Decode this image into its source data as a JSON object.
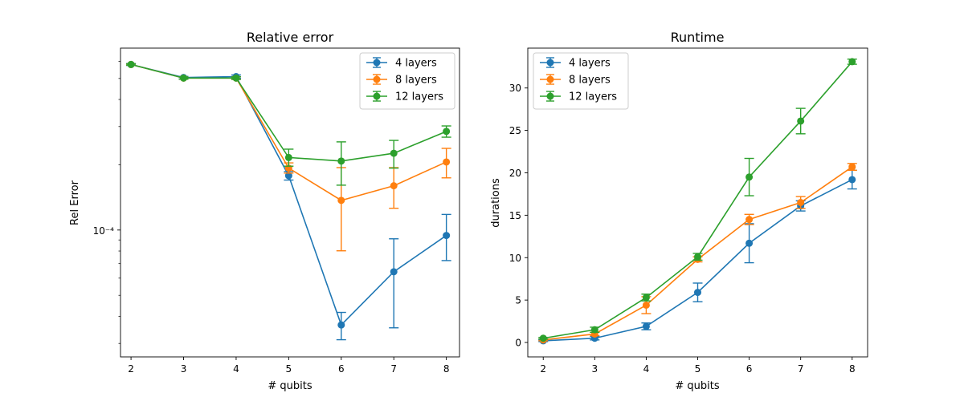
{
  "chart_data": [
    {
      "type": "line",
      "title": "Relative error",
      "xlabel": "# qubits",
      "ylabel": "Rel Error",
      "yscale": "log",
      "x": [
        2,
        3,
        4,
        5,
        6,
        7,
        8
      ],
      "xlim": [
        1.8,
        8.25
      ],
      "ylim": [
        2.6e-05,
        0.00069
      ],
      "y_tick_labels": [
        "10⁻⁴"
      ],
      "legend": "top-right",
      "series": [
        {
          "name": "4 layers",
          "color": "#1f77b4",
          "values": [
            0.00058,
            0.000505,
            0.00051,
            0.000178,
            3.65e-05,
            6.42e-05,
            9.44e-05
          ],
          "err_low": [
            0.000574,
            0.000498,
            0.000501,
            0.00017,
            3.12e-05,
            3.54e-05,
            7.23e-05
          ],
          "err_high": [
            0.000586,
            0.000511,
            0.000519,
            0.000186,
            4.17e-05,
            9.11e-05,
            0.000118
          ]
        },
        {
          "name": "8 layers",
          "color": "#ff7f0e",
          "values": [
            0.00058,
            0.000502,
            0.000502,
            0.000193,
            0.000137,
            0.00016,
            0.000206
          ],
          "err_low": [
            0.000576,
            0.000496,
            0.000495,
            0.000183,
            8.02e-05,
            0.000126,
            0.000174
          ],
          "err_high": [
            0.000584,
            0.000508,
            0.000509,
            0.000204,
            0.000194,
            0.000194,
            0.000238
          ]
        },
        {
          "name": "12 layers",
          "color": "#2ca02c",
          "values": [
            0.00058,
            0.000502,
            0.000502,
            0.000216,
            0.000208,
            0.000226,
            0.000285
          ],
          "err_low": [
            0.000576,
            0.000496,
            0.000495,
            0.000197,
            0.000161,
            0.000193,
            0.000268
          ],
          "err_high": [
            0.000584,
            0.000508,
            0.000509,
            0.000236,
            0.000255,
            0.000259,
            0.000302
          ]
        }
      ]
    },
    {
      "type": "line",
      "title": "Runtime",
      "xlabel": "# qubits",
      "ylabel": "durations",
      "yscale": "linear",
      "x": [
        2,
        3,
        4,
        5,
        6,
        7,
        8
      ],
      "xlim": [
        1.7,
        8.3
      ],
      "ylim": [
        -1.7,
        34.7
      ],
      "y_ticks": [
        0,
        5,
        10,
        15,
        20,
        25,
        30
      ],
      "legend": "top-left",
      "series": [
        {
          "name": "4 layers",
          "color": "#1f77b4",
          "values": [
            0.2,
            0.5,
            1.9,
            5.9,
            11.7,
            16.1,
            19.2
          ],
          "err_low": [
            0.1,
            0.3,
            1.5,
            4.8,
            9.4,
            15.5,
            18.1
          ],
          "err_high": [
            0.3,
            0.7,
            2.3,
            7.0,
            14.0,
            16.7,
            20.3
          ]
        },
        {
          "name": "8 layers",
          "color": "#ff7f0e",
          "values": [
            0.3,
            1.0,
            4.4,
            9.8,
            14.5,
            16.5,
            20.7
          ],
          "err_low": [
            0.2,
            0.8,
            3.4,
            9.5,
            13.9,
            15.8,
            20.3
          ],
          "err_high": [
            0.4,
            1.2,
            5.4,
            10.1,
            15.1,
            17.2,
            21.1
          ]
        },
        {
          "name": "12 layers",
          "color": "#2ca02c",
          "values": [
            0.5,
            1.5,
            5.3,
            10.1,
            19.5,
            26.1,
            33.1
          ],
          "err_low": [
            0.4,
            1.2,
            4.9,
            9.7,
            17.3,
            24.6,
            32.8
          ],
          "err_high": [
            0.6,
            1.8,
            5.7,
            10.5,
            21.7,
            27.6,
            33.4
          ]
        }
      ]
    }
  ]
}
